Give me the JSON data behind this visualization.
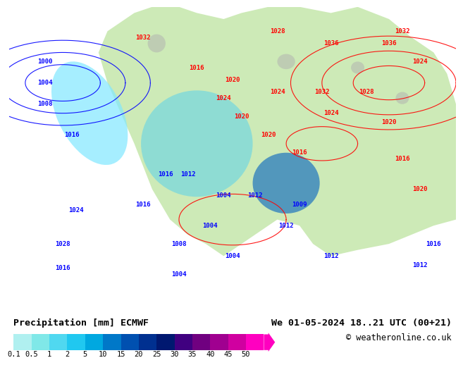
{
  "title_left": "Precipitation [mm] ECMWF",
  "title_right": "We 01-05-2024 18..21 UTC (00+21)",
  "copyright": "© weatheronline.co.uk",
  "colorbar_values": [
    0.1,
    0.5,
    1,
    2,
    5,
    10,
    15,
    20,
    25,
    30,
    35,
    40,
    45,
    50
  ],
  "colorbar_colors": [
    "#b0f0f0",
    "#80e8e8",
    "#50d8f0",
    "#20c8f0",
    "#00a8e0",
    "#0078c8",
    "#0050b0",
    "#003090",
    "#001870",
    "#400080",
    "#700080",
    "#a00090",
    "#d000a0",
    "#ff00c0"
  ],
  "bg_color": "#ffffff",
  "map_bg": "#b0d8f0",
  "label_fontsize": 9,
  "title_fontsize": 9.5
}
